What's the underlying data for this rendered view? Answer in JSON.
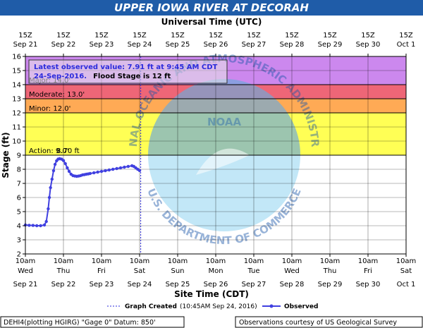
{
  "banner": {
    "title": "UPPER IOWA RIVER AT DECORAH",
    "color": "#1f5ca8"
  },
  "top_axis_title": "Universal Time (UTC)",
  "bottom_axis_title": "Site Time (CDT)",
  "y_axis_title": "Stage (ft)",
  "top_ticks": [
    {
      "line1": "15Z",
      "line2": "Sep 21"
    },
    {
      "line1": "15Z",
      "line2": "Sep 22"
    },
    {
      "line1": "15Z",
      "line2": "Sep 23"
    },
    {
      "line1": "15Z",
      "line2": "Sep 24"
    },
    {
      "line1": "15Z",
      "line2": "Sep 25"
    },
    {
      "line1": "15Z",
      "line2": "Sep 26"
    },
    {
      "line1": "15Z",
      "line2": "Sep 27"
    },
    {
      "line1": "15Z",
      "line2": "Sep 28"
    },
    {
      "line1": "15Z",
      "line2": "Sep 29"
    },
    {
      "line1": "15Z",
      "line2": "Sep 30"
    },
    {
      "line1": "15Z",
      "line2": "Oct 1"
    }
  ],
  "bottom_ticks": [
    {
      "line1": "10am",
      "line2": "Wed",
      "line3": "Sep 21"
    },
    {
      "line1": "10am",
      "line2": "Thu",
      "line3": "Sep 22"
    },
    {
      "line1": "10am",
      "line2": "Fri",
      "line3": "Sep 23"
    },
    {
      "line1": "10am",
      "line2": "Sat",
      "line3": "Sep 24"
    },
    {
      "line1": "10am",
      "line2": "Sun",
      "line3": "Sep 25"
    },
    {
      "line1": "10am",
      "line2": "Mon",
      "line3": "Sep 26"
    },
    {
      "line1": "10am",
      "line2": "Tue",
      "line3": "Sep 27"
    },
    {
      "line1": "10am",
      "line2": "Wed",
      "line3": "Sep 28"
    },
    {
      "line1": "10am",
      "line2": "Thu",
      "line3": "Sep 29"
    },
    {
      "line1": "10am",
      "line2": "Fri",
      "line3": "Sep 30"
    },
    {
      "line1": "10am",
      "line2": "Sat",
      "line3": "Oct 1"
    }
  ],
  "latest": {
    "line1": "Latest observed value: 7.91 ft at 9:45 AM CDT",
    "line2_date": "24-Sep-2016.",
    "line2_flood": "Flood Stage is 12 ft"
  },
  "bands": [
    {
      "name": "major",
      "label": "Major: 14.0'",
      "from": 14,
      "to": 16,
      "color": "#cc88ee"
    },
    {
      "name": "moderate",
      "label": "Moderate: 13.0'",
      "from": 13,
      "to": 14,
      "color": "#ee6677"
    },
    {
      "name": "minor",
      "label": "Minor: 12.0'",
      "from": 12,
      "to": 13,
      "color": "#ffaa55"
    },
    {
      "name": "action",
      "label": "Action: 9.0'",
      "from": 9,
      "to": 12,
      "color": "#ffff55"
    }
  ],
  "action_value_overlay": "8.70 ft",
  "legend": {
    "created_label": "Graph Created",
    "created_value": "(10:45AM Sep 24, 2016)",
    "observed_label": "Observed",
    "observed_color": "#4040e0"
  },
  "footer": {
    "left": "DEHI4(plotting HGIRG) \"Gage 0\" Datum: 850'",
    "right": "Observations courtesy of US Geological Survey"
  },
  "watermark": {
    "noaa": "NOAA",
    "top_arc": "NATIONAL OCEANIC AND ATMOSPHERIC ADMINISTRATION",
    "bottom_arc": "U.S. DEPARTMENT OF COMMERCE"
  },
  "chart_data": {
    "type": "line",
    "title": "UPPER IOWA RIVER AT DECORAH",
    "xlabel": "Site Time (CDT)",
    "x2label": "Universal Time (UTC)",
    "ylabel": "Stage (ft)",
    "ylim": [
      2,
      16
    ],
    "yticks": [
      2,
      3,
      4,
      5,
      6,
      7,
      8,
      9,
      10,
      11,
      12,
      13,
      14,
      15,
      16
    ],
    "x_range_days_from_sep21_10am": [
      0,
      10
    ],
    "graph_created_day": 3.03,
    "grid": true,
    "series": [
      {
        "name": "Observed",
        "x_days_from_sep21_10am": [
          0.0,
          0.1,
          0.2,
          0.3,
          0.4,
          0.5,
          0.55,
          0.6,
          0.63,
          0.66,
          0.7,
          0.74,
          0.78,
          0.82,
          0.86,
          0.9,
          0.95,
          1.0,
          1.05,
          1.1,
          1.15,
          1.2,
          1.25,
          1.3,
          1.35,
          1.4,
          1.45,
          1.5,
          1.55,
          1.6,
          1.65,
          1.7,
          1.8,
          1.9,
          2.0,
          2.1,
          2.2,
          2.3,
          2.4,
          2.5,
          2.6,
          2.7,
          2.8,
          2.85,
          2.9,
          2.95,
          3.0
        ],
        "y": [
          4.05,
          4.03,
          4.02,
          4.0,
          4.0,
          4.05,
          4.3,
          5.2,
          6.0,
          6.7,
          7.3,
          7.9,
          8.35,
          8.6,
          8.72,
          8.75,
          8.72,
          8.62,
          8.4,
          8.1,
          7.85,
          7.65,
          7.55,
          7.52,
          7.5,
          7.52,
          7.55,
          7.6,
          7.62,
          7.65,
          7.67,
          7.7,
          7.75,
          7.8,
          7.85,
          7.9,
          7.95,
          8.0,
          8.05,
          8.1,
          8.15,
          8.2,
          8.25,
          8.2,
          8.1,
          8.0,
          7.91
        ]
      }
    ],
    "thresholds": [
      {
        "name": "Action",
        "value": 9.0
      },
      {
        "name": "Minor",
        "value": 12.0
      },
      {
        "name": "Moderate",
        "value": 13.0
      },
      {
        "name": "Major",
        "value": 14.0
      }
    ],
    "latest_value": {
      "value": 7.91,
      "time": "9:45 AM CDT 24-Sep-2016"
    },
    "flood_stage": 12
  }
}
